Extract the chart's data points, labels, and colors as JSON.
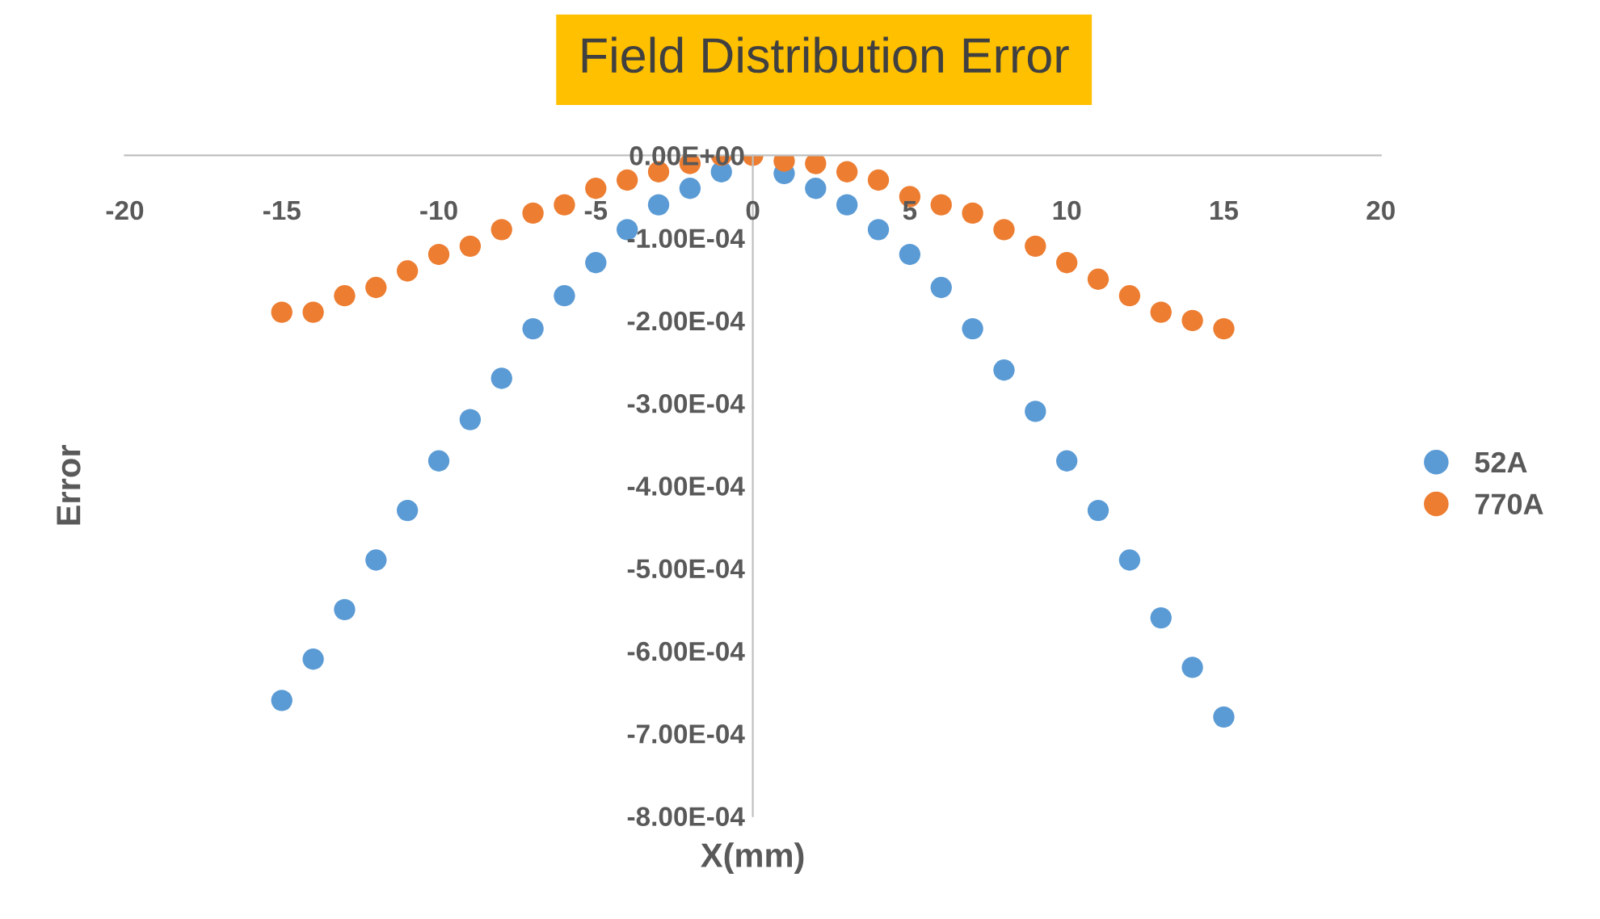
{
  "chart_data": {
    "type": "scatter",
    "title": "Field Distribution Error",
    "xlabel": "X(mm)",
    "ylabel": "Error",
    "x": [
      -15,
      -14,
      -13,
      -12,
      -11,
      -10,
      -9,
      -8,
      -7,
      -6,
      -5,
      -4,
      -3,
      -2,
      -1,
      0,
      1,
      2,
      3,
      4,
      5,
      6,
      7,
      8,
      9,
      10,
      11,
      12,
      13,
      14,
      15
    ],
    "series": [
      {
        "name": "52A",
        "color": "#5b9bd5",
        "values": [
          -0.00066,
          -0.00061,
          -0.00055,
          -0.00049,
          -0.00043,
          -0.00037,
          -0.00032,
          -0.00027,
          -0.00021,
          -0.00017,
          -0.00013,
          -9e-05,
          -6e-05,
          -4e-05,
          -2e-05,
          null,
          -2.2e-05,
          -4e-05,
          -6e-05,
          -9e-05,
          -0.00012,
          -0.00016,
          -0.00021,
          -0.00026,
          -0.00031,
          -0.00037,
          -0.00043,
          -0.00049,
          -0.00056,
          -0.00062,
          -0.00068
        ]
      },
      {
        "name": "770A",
        "color": "#ed7d31",
        "values": [
          -0.00019,
          -0.00019,
          -0.00017,
          -0.00016,
          -0.00014,
          -0.00012,
          -0.00011,
          -9e-05,
          -7e-05,
          -6e-05,
          -4e-05,
          -3e-05,
          -2e-05,
          -1e-05,
          0,
          0,
          -7e-06,
          -1e-05,
          -2e-05,
          -3e-05,
          -5e-05,
          -6e-05,
          -7e-05,
          -9e-05,
          -0.00011,
          -0.00013,
          -0.00015,
          -0.00017,
          -0.00019,
          -0.0002,
          -0.00021
        ]
      }
    ],
    "xlim": [
      -20,
      20
    ],
    "xticks": [
      -20,
      -15,
      -10,
      -5,
      0,
      5,
      10,
      15,
      20
    ],
    "ylim": [
      -0.0008,
      0
    ],
    "yticks": [
      {
        "value": -0.0008,
        "label": "-8.00E-04"
      },
      {
        "value": -0.0007,
        "label": "-7.00E-04"
      },
      {
        "value": -0.0006,
        "label": "-6.00E-04"
      },
      {
        "value": -0.0005,
        "label": "-5.00E-04"
      },
      {
        "value": -0.0004,
        "label": "-4.00E-04"
      },
      {
        "value": -0.0003,
        "label": "-3.00E-04"
      },
      {
        "value": -0.0002,
        "label": "-2.00E-04"
      },
      {
        "value": -0.0001,
        "label": "-1.00E-04"
      },
      {
        "value": 0,
        "label": "0.00E+00"
      }
    ],
    "marker": "circle",
    "legend": "right",
    "grid": false
  }
}
